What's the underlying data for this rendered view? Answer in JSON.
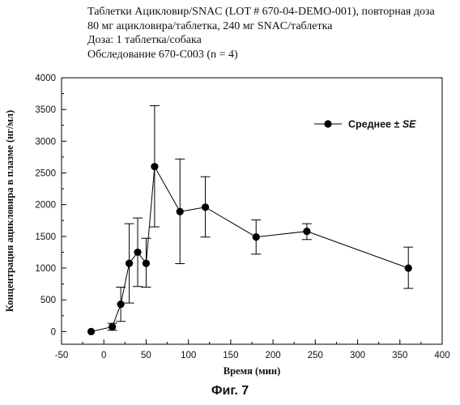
{
  "header": {
    "lines": [
      "Таблетки Ацикловир/SNAC (LOT # 670-04-DEMO-001), повторная доза",
      "80 мг ацикловира/таблетка, 240 мг SNAC/таблетка",
      "Доза: 1 таблетка/собака",
      "Обследование 670-C003 (n = 4)"
    ]
  },
  "caption": "Фиг. 7",
  "chart_data": {
    "type": "line",
    "xlabel": "Время (мин)",
    "ylabel": "Концентрация ацикловира в плазме (нг/мл)",
    "xlim": [
      -50,
      400
    ],
    "ylim": [
      -200,
      4000
    ],
    "xticks": [
      -50,
      0,
      50,
      100,
      150,
      200,
      250,
      300,
      350,
      400
    ],
    "yticks": [
      0,
      500,
      1000,
      1500,
      2000,
      2500,
      3000,
      3500,
      4000
    ],
    "legend": {
      "placement": "top-right",
      "label": "Среднее ± ",
      "label_italic": "SE"
    },
    "grid": false,
    "series": [
      {
        "name": "Среднее ± SE",
        "marker": "filled-circle",
        "color": "#000000",
        "points": [
          {
            "x": -15,
            "y": 0,
            "lo": 0,
            "hi": 0
          },
          {
            "x": 10,
            "y": 75,
            "lo": 20,
            "hi": 130
          },
          {
            "x": 20,
            "y": 430,
            "lo": 160,
            "hi": 700
          },
          {
            "x": 30,
            "y": 1075,
            "lo": 450,
            "hi": 1700
          },
          {
            "x": 40,
            "y": 1250,
            "lo": 710,
            "hi": 1790
          },
          {
            "x": 50,
            "y": 1075,
            "lo": 700,
            "hi": 1470
          },
          {
            "x": 60,
            "y": 2600,
            "lo": 1650,
            "hi": 3560
          },
          {
            "x": 90,
            "y": 1890,
            "lo": 1070,
            "hi": 2720
          },
          {
            "x": 120,
            "y": 1960,
            "lo": 1490,
            "hi": 2440
          },
          {
            "x": 180,
            "y": 1490,
            "lo": 1220,
            "hi": 1760
          },
          {
            "x": 240,
            "y": 1580,
            "lo": 1450,
            "hi": 1700
          },
          {
            "x": 360,
            "y": 1000,
            "lo": 680,
            "hi": 1330
          }
        ]
      }
    ]
  }
}
